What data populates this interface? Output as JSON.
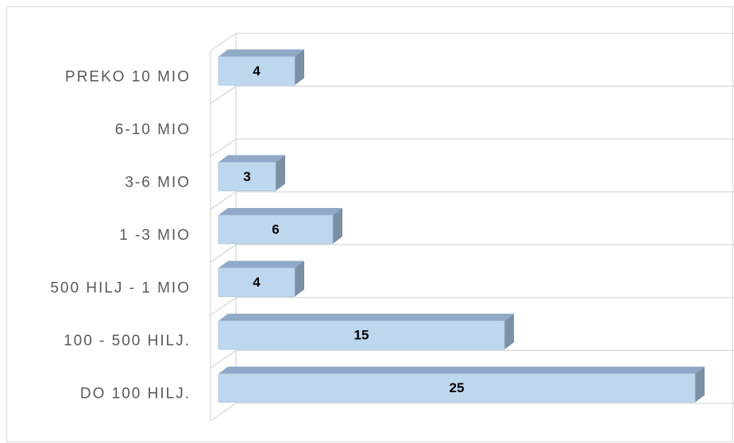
{
  "chart_data": {
    "type": "bar",
    "orientation": "horizontal",
    "style": "3d",
    "categories": [
      "PREKO 10 MIO",
      "6-10 MIO",
      "3-6 MIO",
      "1 -3 MIO",
      "500 HILJ - 1 MIO",
      "100 - 500 HILJ.",
      "DO 100 HILJ."
    ],
    "values": [
      4,
      null,
      3,
      6,
      4,
      15,
      25
    ],
    "color": "#bdd7ee",
    "grid": true
  }
}
